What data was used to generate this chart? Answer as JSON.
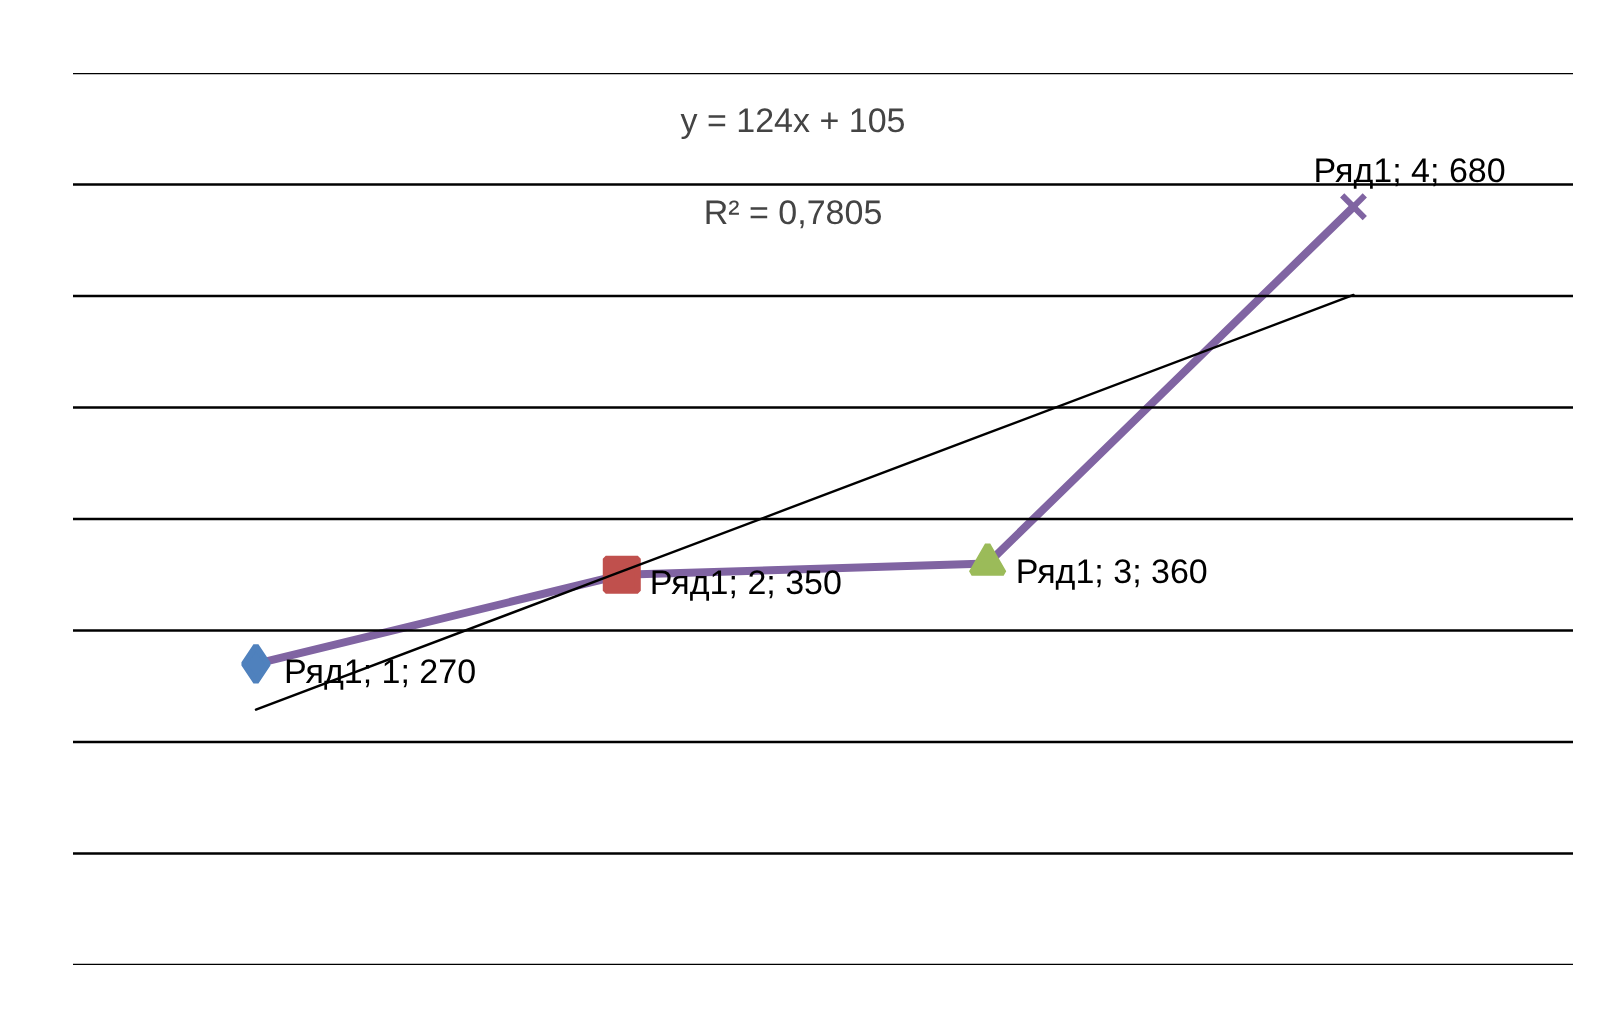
{
  "chart_data": {
    "type": "line",
    "categories": [
      null,
      null,
      null,
      null
    ],
    "ylim": [
      0,
      800
    ],
    "yticks": [
      {
        "value": 0,
        "label": null
      },
      {
        "value": 100,
        "label": null
      },
      {
        "value": 200,
        "label": null
      },
      {
        "value": 300,
        "label": null
      },
      {
        "value": 400,
        "label": null
      },
      {
        "value": 500,
        "label": null
      },
      {
        "value": 600,
        "label": null
      },
      {
        "value": 700,
        "label": null
      },
      {
        "value": 800,
        "label": null
      }
    ],
    "tick_labels": false,
    "grid": "y",
    "series": [
      {
        "color": "#8064a2",
        "values": [
          270,
          350,
          360,
          680
        ],
        "colors": [
          "#4f81bd",
          "#c0504d",
          "#9bbb59",
          "#8064a2"
        ],
        "marker": [
          "diamond",
          "square",
          "triangle",
          "cross"
        ],
        "value_labels": [
          "Ряд1; 1; 270",
          "Ряд1; 2; 350",
          "Ряд1; 3; 360",
          "Ряд1; 4; 680"
        ]
      },
      {
        "type": "line",
        "values": [
          229,
          353,
          477,
          601
        ],
        "color": "#000000",
        "marker": "none"
      }
    ],
    "annotations": [
      "y = 124x + 105",
      "R² = 0,7805"
    ]
  }
}
